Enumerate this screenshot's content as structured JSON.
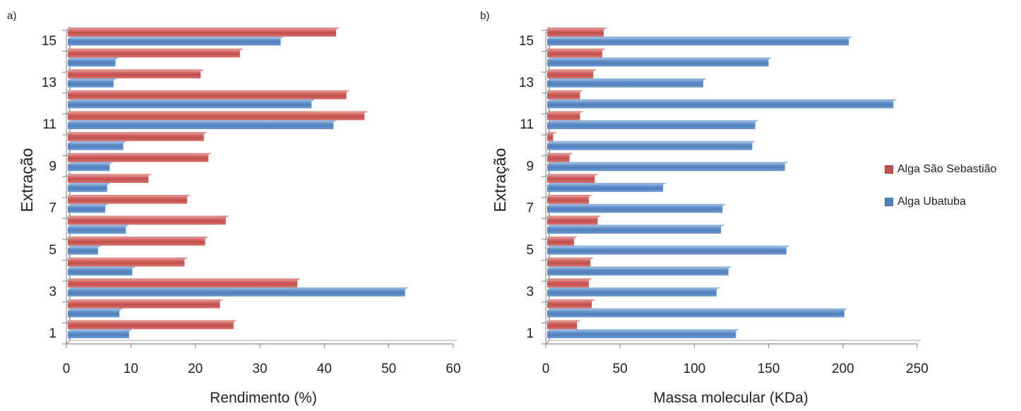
{
  "chart_data": [
    {
      "panel_label": "a)",
      "type": "bar",
      "orientation": "horizontal",
      "categories": [
        "1",
        "2",
        "3",
        "4",
        "5",
        "6",
        "7",
        "8",
        "9",
        "10",
        "11",
        "12",
        "13",
        "14",
        "15"
      ],
      "category_tick_labels": [
        "1",
        "",
        "3",
        "",
        "5",
        "",
        "7",
        "",
        "9",
        "",
        "11",
        "",
        "13",
        "",
        "15"
      ],
      "series": [
        {
          "name": "Alga Ubatuba",
          "values": [
            9.5,
            8.0,
            52.3,
            10.0,
            4.7,
            9.0,
            5.8,
            6.1,
            6.5,
            8.6,
            41.2,
            37.8,
            7.1,
            7.4,
            33.0
          ]
        },
        {
          "name": "Alga São Sebastião",
          "values": [
            25.7,
            23.6,
            35.6,
            18.1,
            21.3,
            24.5,
            18.5,
            12.5,
            21.8,
            21.1,
            46.0,
            43.2,
            20.6,
            26.7,
            41.6
          ]
        }
      ],
      "xlabel": "Rendimento (%)",
      "ylabel": "Extração",
      "xlim": [
        0,
        60
      ],
      "xticks": [
        "0",
        "10",
        "20",
        "30",
        "40",
        "50",
        "60"
      ]
    },
    {
      "panel_label": "b)",
      "type": "bar",
      "orientation": "horizontal",
      "categories": [
        "1",
        "2",
        "3",
        "4",
        "5",
        "6",
        "7",
        "8",
        "9",
        "10",
        "11",
        "12",
        "13",
        "14",
        "15"
      ],
      "category_tick_labels": [
        "1",
        "",
        "3",
        "",
        "5",
        "",
        "7",
        "",
        "9",
        "",
        "11",
        "",
        "13",
        "",
        "15"
      ],
      "series": [
        {
          "name": "Alga Ubatuba",
          "values": [
            127,
            200,
            114,
            122,
            161,
            117,
            118,
            78,
            160,
            138,
            140,
            233,
            105,
            149,
            203
          ]
        },
        {
          "name": "Alga São Sebastião",
          "values": [
            20,
            30,
            28,
            29,
            18,
            34,
            28,
            32,
            15,
            4,
            22,
            22,
            31,
            37,
            38
          ]
        }
      ],
      "xlabel": "Massa molecular (KDa)",
      "ylabel": "Extração",
      "xlim": [
        0,
        250
      ],
      "xticks": [
        "0",
        "50",
        "100",
        "150",
        "200",
        "250"
      ],
      "legend": {
        "placement": "right",
        "items": [
          "Alga São Sebastião",
          "Alga Ubatuba"
        ]
      }
    }
  ],
  "colors": {
    "ubatuba": "#4f81bd",
    "sao_sebastiao": "#c0504d",
    "axis": "#868686",
    "text": "#222222"
  }
}
